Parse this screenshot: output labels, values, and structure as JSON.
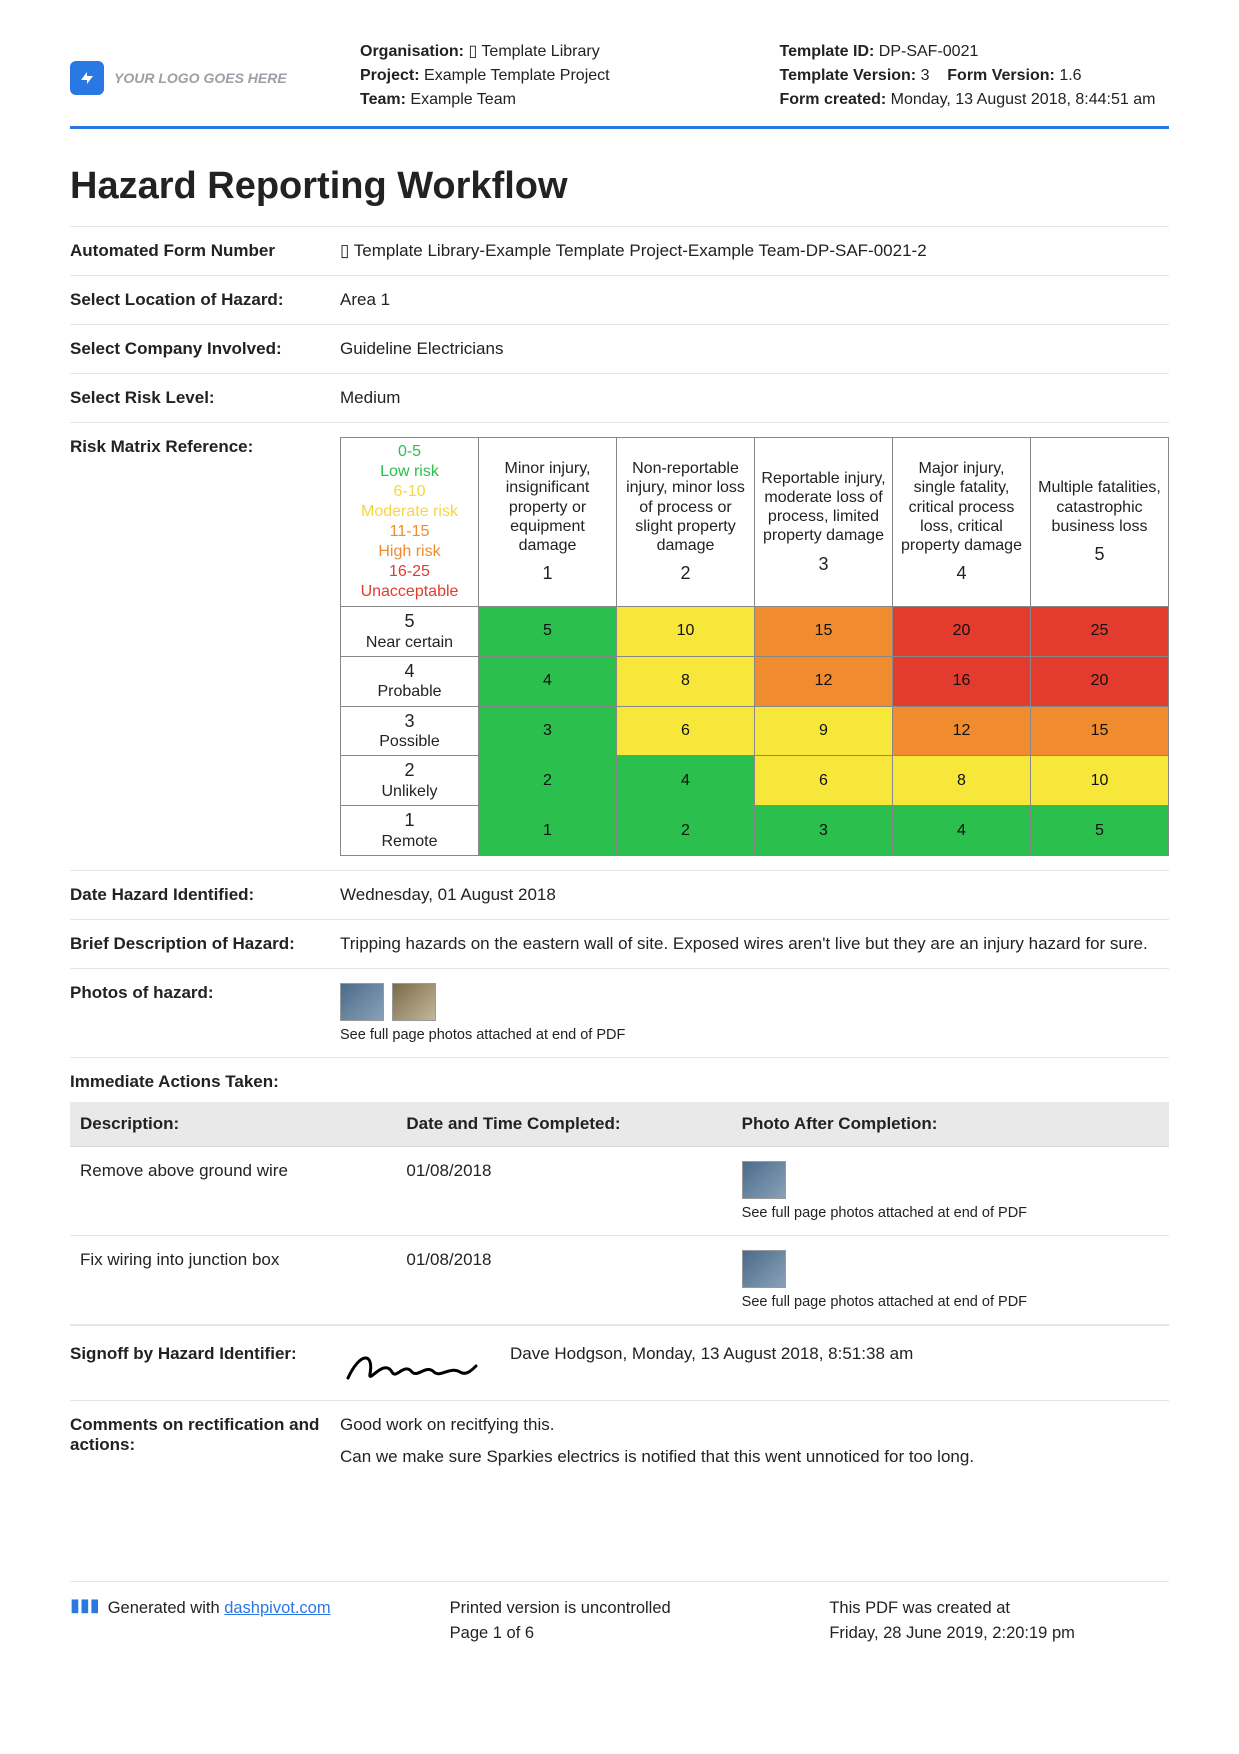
{
  "header": {
    "logo_text": "YOUR LOGO GOES HERE",
    "left": {
      "org_label": "Organisation:",
      "org_value": "▯ Template Library",
      "project_label": "Project:",
      "project_value": "Example Template Project",
      "team_label": "Team:",
      "team_value": "Example Team"
    },
    "right": {
      "tid_label": "Template ID:",
      "tid_value": "DP-SAF-0021",
      "tver_label": "Template Version:",
      "tver_value": "3",
      "fver_label": "Form Version:",
      "fver_value": "1.6",
      "fcreated_label": "Form created:",
      "fcreated_value": "Monday, 13 August 2018, 8:44:51 am"
    }
  },
  "title": "Hazard Reporting Workflow",
  "fields": {
    "form_num_label": "Automated Form Number",
    "form_num_value": "▯ Template Library-Example Template Project-Example Team-DP-SAF-0021-2",
    "location_label": "Select Location of Hazard:",
    "location_value": "Area 1",
    "company_label": "Select Company Involved:",
    "company_value": "Guideline Electricians",
    "risk_label": "Select Risk Level:",
    "risk_value": "Medium",
    "matrix_label": "Risk Matrix Reference:",
    "date_label": "Date Hazard Identified:",
    "date_value": "Wednesday, 01 August 2018",
    "desc_label": "Brief Description of Hazard:",
    "desc_value": "Tripping hazards on the eastern wall of site. Exposed wires aren't live but they are an injury hazard for sure.",
    "photos_label": "Photos of hazard:",
    "photos_note": "See full page photos attached at end of PDF",
    "actions_head": "Immediate Actions Taken:",
    "signoff_label": "Signoff by Hazard Identifier:",
    "signoff_text": "Dave Hodgson, Monday, 13 August 2018, 8:51:38 am",
    "comments_label": "Comments on rectification and actions:",
    "comments_p1": "Good work on recitfying this.",
    "comments_p2": "Can we make sure Sparkies electrics is notified that this went unnoticed for too long."
  },
  "matrix": {
    "type": "risk-matrix-table",
    "colors": {
      "green": "#2bbf4e",
      "yellow": "#f8e73b",
      "orange": "#f08b2e",
      "red": "#e33b2e",
      "text_on_cell": "#111111"
    },
    "corner_legend": [
      {
        "text": "0-5",
        "sub": "Low risk",
        "color": "#2bbf4e"
      },
      {
        "text": "6-10",
        "sub": "Moderate risk",
        "color": "#f6d642"
      },
      {
        "text": "11-15",
        "sub": "High risk",
        "color": "#f08b2e"
      },
      {
        "text": "16-25",
        "sub": "Unacceptable",
        "color": "#e33b2e"
      }
    ],
    "col_headers": [
      {
        "num": "1",
        "text": "Minor injury, insignificant property or equipment damage"
      },
      {
        "num": "2",
        "text": "Non-reportable injury, minor loss of process or slight property damage"
      },
      {
        "num": "3",
        "text": "Reportable injury, moderate loss of process, limited property damage"
      },
      {
        "num": "4",
        "text": "Major injury, single fatality, critical process loss, critical property damage"
      },
      {
        "num": "5",
        "text": "Multiple fatalities, catastrophic business loss"
      }
    ],
    "row_headers": [
      {
        "num": "5",
        "text": "Near certain"
      },
      {
        "num": "4",
        "text": "Probable"
      },
      {
        "num": "3",
        "text": "Possible"
      },
      {
        "num": "2",
        "text": "Unlikely"
      },
      {
        "num": "1",
        "text": "Remote"
      }
    ],
    "cells": [
      [
        {
          "v": "5",
          "c": "green"
        },
        {
          "v": "10",
          "c": "yellow"
        },
        {
          "v": "15",
          "c": "orange"
        },
        {
          "v": "20",
          "c": "red"
        },
        {
          "v": "25",
          "c": "red"
        }
      ],
      [
        {
          "v": "4",
          "c": "green"
        },
        {
          "v": "8",
          "c": "yellow"
        },
        {
          "v": "12",
          "c": "orange"
        },
        {
          "v": "16",
          "c": "red"
        },
        {
          "v": "20",
          "c": "red"
        }
      ],
      [
        {
          "v": "3",
          "c": "green"
        },
        {
          "v": "6",
          "c": "yellow"
        },
        {
          "v": "9",
          "c": "yellow"
        },
        {
          "v": "12",
          "c": "orange"
        },
        {
          "v": "15",
          "c": "orange"
        }
      ],
      [
        {
          "v": "2",
          "c": "green"
        },
        {
          "v": "4",
          "c": "green"
        },
        {
          "v": "6",
          "c": "yellow"
        },
        {
          "v": "8",
          "c": "yellow"
        },
        {
          "v": "10",
          "c": "yellow"
        }
      ],
      [
        {
          "v": "1",
          "c": "green"
        },
        {
          "v": "2",
          "c": "green"
        },
        {
          "v": "3",
          "c": "green"
        },
        {
          "v": "4",
          "c": "green"
        },
        {
          "v": "5",
          "c": "green"
        }
      ]
    ]
  },
  "actions_table": {
    "columns": [
      "Description:",
      "Date and Time Completed:",
      "Photo After Completion:"
    ],
    "note": "See full page photos attached at end of PDF",
    "rows": [
      {
        "desc": "Remove above ground wire",
        "date": "01/08/2018"
      },
      {
        "desc": "Fix wiring into junction box",
        "date": "01/08/2018"
      }
    ]
  },
  "footer": {
    "generated_prefix": "Generated with ",
    "generated_link": "dashpivot.com",
    "mid1": "Printed version is uncontrolled",
    "mid2": "Page 1 of 6",
    "right1": "This PDF was created at",
    "right2": "Friday, 28 June 2019, 2:20:19 pm"
  }
}
